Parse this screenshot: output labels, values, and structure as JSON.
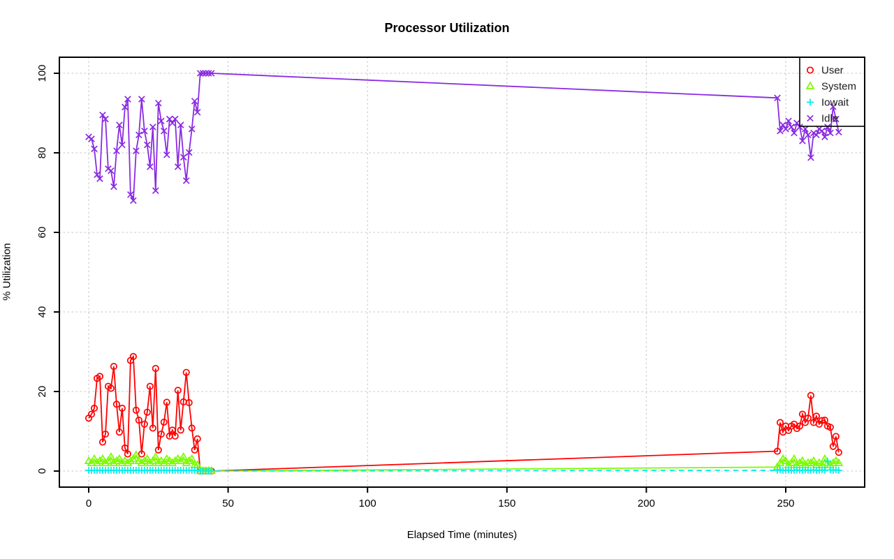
{
  "title": "Processor Utilization",
  "xlabel": "Elapsed Time (minutes)",
  "ylabel": "% Utilization",
  "colors": {
    "user": "#FF0000",
    "system": "#7CFC00",
    "iowait": "#00EEEE",
    "idle": "#8A2BE2",
    "grid": "#CFCFCF",
    "axis": "#000000",
    "background": "#FFFFFF"
  },
  "chart_data": {
    "type": "line",
    "title": "Processor Utilization",
    "xlabel": "Elapsed Time (minutes)",
    "ylabel": "% Utilization",
    "xlim": [
      -10,
      278
    ],
    "ylim": [
      -4,
      104
    ],
    "x_ticks": [
      0,
      50,
      100,
      150,
      200,
      250
    ],
    "y_ticks": [
      0,
      20,
      40,
      60,
      80,
      100
    ],
    "grid": "dotted",
    "legend_position": "top-right",
    "x": [
      0,
      1,
      2,
      3,
      4,
      5,
      6,
      7,
      8,
      9,
      10,
      11,
      12,
      13,
      14,
      15,
      16,
      17,
      18,
      19,
      20,
      21,
      22,
      23,
      24,
      25,
      26,
      27,
      28,
      29,
      30,
      31,
      32,
      33,
      34,
      35,
      36,
      37,
      38,
      39,
      40,
      41,
      42,
      43,
      44,
      247,
      248,
      249,
      250,
      251,
      252,
      253,
      254,
      255,
      256,
      257,
      258,
      259,
      260,
      261,
      262,
      263,
      264,
      265,
      266,
      267,
      268,
      269
    ],
    "series": [
      {
        "name": "User",
        "color": "#FF0000",
        "marker": "circle",
        "dash": "solid",
        "values": [
          13.3,
          14.3,
          15.8,
          23.3,
          23.8,
          7.3,
          9.3,
          21.3,
          20.8,
          26.3,
          16.8,
          9.8,
          15.8,
          5.8,
          4.3,
          27.8,
          28.8,
          15.3,
          12.8,
          4.3,
          11.8,
          14.8,
          21.3,
          10.8,
          25.8,
          5.3,
          9.3,
          12.3,
          17.3,
          8.8,
          10.3,
          8.8,
          20.3,
          10.3,
          17.4,
          24.8,
          17.2,
          10.8,
          5.3,
          8.1,
          0,
          0,
          0,
          0,
          0,
          5.0,
          12.2,
          9.8,
          11.3,
          10.2,
          11.3,
          11.8,
          10.7,
          11.3,
          14.3,
          12.2,
          13.3,
          19.0,
          12.2,
          13.8,
          11.8,
          12.7,
          12.8,
          11.3,
          11.0,
          6.2,
          8.7,
          4.7
        ]
      },
      {
        "name": "System",
        "color": "#7CFC00",
        "marker": "triangle",
        "dash": "solid",
        "values": [
          2.5,
          2,
          3,
          2,
          2.5,
          3,
          2,
          2.5,
          3.5,
          2,
          2.5,
          3,
          2,
          2.5,
          2,
          2.5,
          3,
          4,
          2.5,
          2,
          2.5,
          3,
          2,
          2.5,
          3.5,
          2,
          2.5,
          2,
          3,
          2.5,
          2,
          2.5,
          3,
          2.5,
          3.5,
          2,
          2.5,
          3,
          1.5,
          1.5,
          0,
          0,
          0,
          0,
          0,
          1,
          2,
          3,
          2.5,
          1.5,
          2,
          3,
          1.5,
          2,
          2.5,
          1.5,
          2,
          2,
          2.5,
          1.5,
          2,
          1.5,
          3,
          2,
          1.5,
          2,
          2.5,
          2
        ]
      },
      {
        "name": "Iowait",
        "color": "#00EEEE",
        "marker": "plus",
        "dash": "dashed",
        "values": [
          0.2,
          0.2,
          0.2,
          0.2,
          0.2,
          0.2,
          0.2,
          0.2,
          0.2,
          0.2,
          0.2,
          0.2,
          0.2,
          0.2,
          0.2,
          0.2,
          0.2,
          0.2,
          0.2,
          0.2,
          0.2,
          0.2,
          0.2,
          0.2,
          0.2,
          0.2,
          0.2,
          0.2,
          0.2,
          0.2,
          0.2,
          0.2,
          0.2,
          0.2,
          0.2,
          0.2,
          0.2,
          0.2,
          0.2,
          0.2,
          0,
          0,
          0,
          0,
          0,
          0.2,
          0.3,
          0.2,
          0.2,
          0.3,
          0.2,
          0.2,
          0.3,
          0.2,
          0.2,
          0.3,
          0.2,
          0.2,
          0.3,
          0.2,
          0.2,
          0.3,
          0.2,
          2.5,
          0.3,
          0.2,
          0.3,
          0.2
        ]
      },
      {
        "name": "Idle",
        "color": "#8A2BE2",
        "marker": "x",
        "dash": "solid",
        "values": [
          84,
          83.5,
          81,
          74.5,
          73.5,
          89.5,
          88.5,
          76,
          75.5,
          71.5,
          80.5,
          87,
          82,
          91.5,
          93.5,
          69.5,
          68,
          80.5,
          84.5,
          93.5,
          85.5,
          82,
          76.5,
          86.5,
          70.5,
          92.5,
          88,
          85.5,
          79.5,
          88.5,
          87.5,
          88.5,
          76.5,
          87,
          78.9,
          73,
          80.1,
          86,
          93,
          90.2,
          100,
          100,
          100,
          100,
          100,
          93.8,
          85.5,
          87,
          86,
          88,
          86.5,
          85,
          87.5,
          86.5,
          83,
          86,
          84.5,
          78.8,
          85,
          84.5,
          86,
          85.5,
          84,
          86.5,
          85,
          91.6,
          88.5,
          85.2
        ]
      }
    ]
  }
}
